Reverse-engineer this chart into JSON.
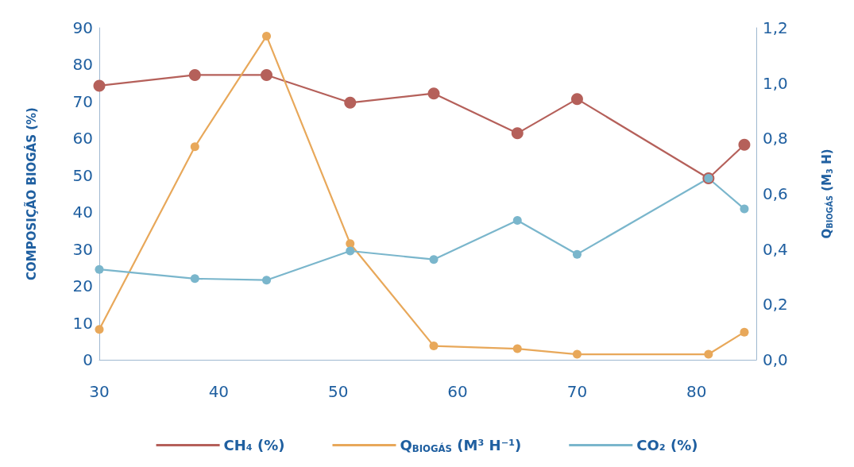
{
  "chart_data": {
    "type": "line",
    "ylabel": "COMPOSIÇÃO BIOGÁS (%)",
    "y2label": "Q$_{BIOGÁS}$ (M$_{3}$ H)",
    "x": [
      30,
      38,
      44,
      51,
      58,
      65,
      70,
      81,
      84
    ],
    "xlim": [
      30,
      85
    ],
    "xticks": [
      30,
      40,
      50,
      60,
      70,
      80
    ],
    "ylim": [
      0,
      90
    ],
    "yticks": [
      0,
      10,
      20,
      30,
      40,
      50,
      60,
      70,
      80,
      90
    ],
    "y2lim": [
      0,
      1.2
    ],
    "y2ticks": [
      {
        "value": 0,
        "label": "0,0"
      },
      {
        "value": 0.2,
        "label": "0,2"
      },
      {
        "value": 0.4,
        "label": "0,4"
      },
      {
        "value": 0.6,
        "label": "0,6"
      },
      {
        "value": 0.8,
        "label": "0,8"
      },
      {
        "value": 1.0,
        "label": "1,0"
      },
      {
        "value": 1.2,
        "label": "1,2"
      }
    ],
    "series": [
      {
        "name": "CH₄ (%)",
        "color": "#b5605a",
        "values": [
          74.3,
          77.2,
          77.2,
          69.7,
          72.2,
          61.4,
          70.7,
          49.2,
          58.3
        ]
      },
      {
        "name": "Q$_{BIOGÁS}$ (M³ H⁻¹)",
        "color": "#e8a85a",
        "axis": "y2",
        "values": [
          0.11,
          0.77,
          1.17,
          0.42,
          0.05,
          0.04,
          0.02,
          0.02,
          0.1
        ]
      },
      {
        "name": "CO₂ (%)",
        "color": "#7ab6cc",
        "values": [
          24.5,
          22.0,
          21.6,
          29.5,
          27.2,
          37.8,
          28.6,
          49.2,
          40.9
        ]
      }
    ],
    "marker": "circle",
    "line_style": "solid",
    "grid": false,
    "legend": "bottom"
  }
}
